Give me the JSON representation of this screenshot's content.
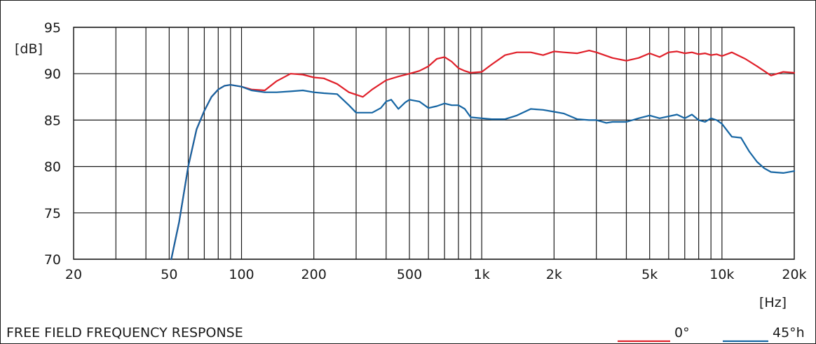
{
  "caption": "FREE FIELD FREQUENCY RESPONSE",
  "chart_data": {
    "type": "line",
    "title": "FREE FIELD FREQUENCY RESPONSE",
    "xlabel": "[Hz]",
    "ylabel": "[dB]",
    "x_scale": "log",
    "xlim": [
      20,
      20000
    ],
    "ylim": [
      70,
      95
    ],
    "x_ticks": [
      20,
      50,
      100,
      200,
      500,
      1000,
      2000,
      5000,
      10000,
      20000
    ],
    "x_tick_labels": [
      "20",
      "50",
      "100",
      "200",
      "500",
      "1k",
      "2k",
      "5k",
      "10k",
      "20k"
    ],
    "y_ticks": [
      70,
      75,
      80,
      85,
      90,
      95
    ],
    "y_tick_labels": [
      "70",
      "75",
      "80",
      "85",
      "90",
      "95"
    ],
    "grid": true,
    "legend_position": "bottom-right",
    "series": [
      {
        "name": "0°",
        "color": "#e0202a",
        "x": [
          51,
          55,
          60,
          65,
          70,
          75,
          80,
          85,
          90,
          100,
          110,
          125,
          140,
          160,
          180,
          200,
          220,
          250,
          280,
          320,
          350,
          400,
          450,
          500,
          550,
          600,
          650,
          700,
          750,
          800,
          850,
          900,
          1000,
          1100,
          1250,
          1400,
          1600,
          1800,
          2000,
          2200,
          2500,
          2800,
          3000,
          3500,
          4000,
          4500,
          5000,
          5500,
          6000,
          6500,
          7000,
          7500,
          8000,
          8500,
          9000,
          9500,
          10000,
          11000,
          12500,
          14000,
          16000,
          18000,
          20000
        ],
        "y": [
          70,
          74,
          80,
          84,
          86,
          87.5,
          88.3,
          88.7,
          88.8,
          88.6,
          88.3,
          88.2,
          89.2,
          90.0,
          89.9,
          89.6,
          89.5,
          88.9,
          88.0,
          87.5,
          88.3,
          89.3,
          89.7,
          90.0,
          90.3,
          90.8,
          91.6,
          91.8,
          91.3,
          90.6,
          90.3,
          90.1,
          90.2,
          91.0,
          92.0,
          92.3,
          92.3,
          92.0,
          92.4,
          92.3,
          92.2,
          92.5,
          92.3,
          91.7,
          91.4,
          91.7,
          92.2,
          91.8,
          92.3,
          92.4,
          92.2,
          92.3,
          92.1,
          92.2,
          92.0,
          92.1,
          91.9,
          92.3,
          91.6,
          90.8,
          89.8,
          90.2,
          90.1
        ]
      },
      {
        "name": "45°h",
        "color": "#1565a3",
        "x": [
          51,
          55,
          60,
          65,
          70,
          75,
          80,
          85,
          90,
          100,
          110,
          125,
          140,
          160,
          180,
          200,
          220,
          250,
          280,
          300,
          350,
          380,
          400,
          420,
          450,
          480,
          500,
          550,
          600,
          650,
          700,
          750,
          800,
          850,
          900,
          1000,
          1100,
          1250,
          1400,
          1600,
          1800,
          2000,
          2200,
          2500,
          2800,
          3000,
          3300,
          3500,
          4000,
          4500,
          5000,
          5500,
          6000,
          6500,
          7000,
          7500,
          8000,
          8500,
          9000,
          9500,
          10000,
          11000,
          12000,
          13000,
          14000,
          15000,
          16000,
          18000,
          20000
        ],
        "y": [
          70,
          74,
          80,
          84,
          86,
          87.5,
          88.3,
          88.7,
          88.8,
          88.6,
          88.2,
          88.0,
          88.0,
          88.1,
          88.2,
          88.0,
          87.9,
          87.8,
          86.6,
          85.8,
          85.8,
          86.3,
          87.0,
          87.2,
          86.2,
          86.9,
          87.2,
          87.0,
          86.3,
          86.5,
          86.8,
          86.6,
          86.6,
          86.2,
          85.3,
          85.2,
          85.1,
          85.1,
          85.5,
          86.2,
          86.1,
          85.9,
          85.7,
          85.1,
          85.0,
          85.0,
          84.7,
          84.8,
          84.8,
          85.2,
          85.5,
          85.2,
          85.4,
          85.6,
          85.2,
          85.6,
          85.0,
          84.8,
          85.2,
          85.0,
          84.6,
          83.2,
          83.1,
          81.6,
          80.5,
          79.8,
          79.4,
          79.3,
          79.5
        ]
      }
    ]
  }
}
